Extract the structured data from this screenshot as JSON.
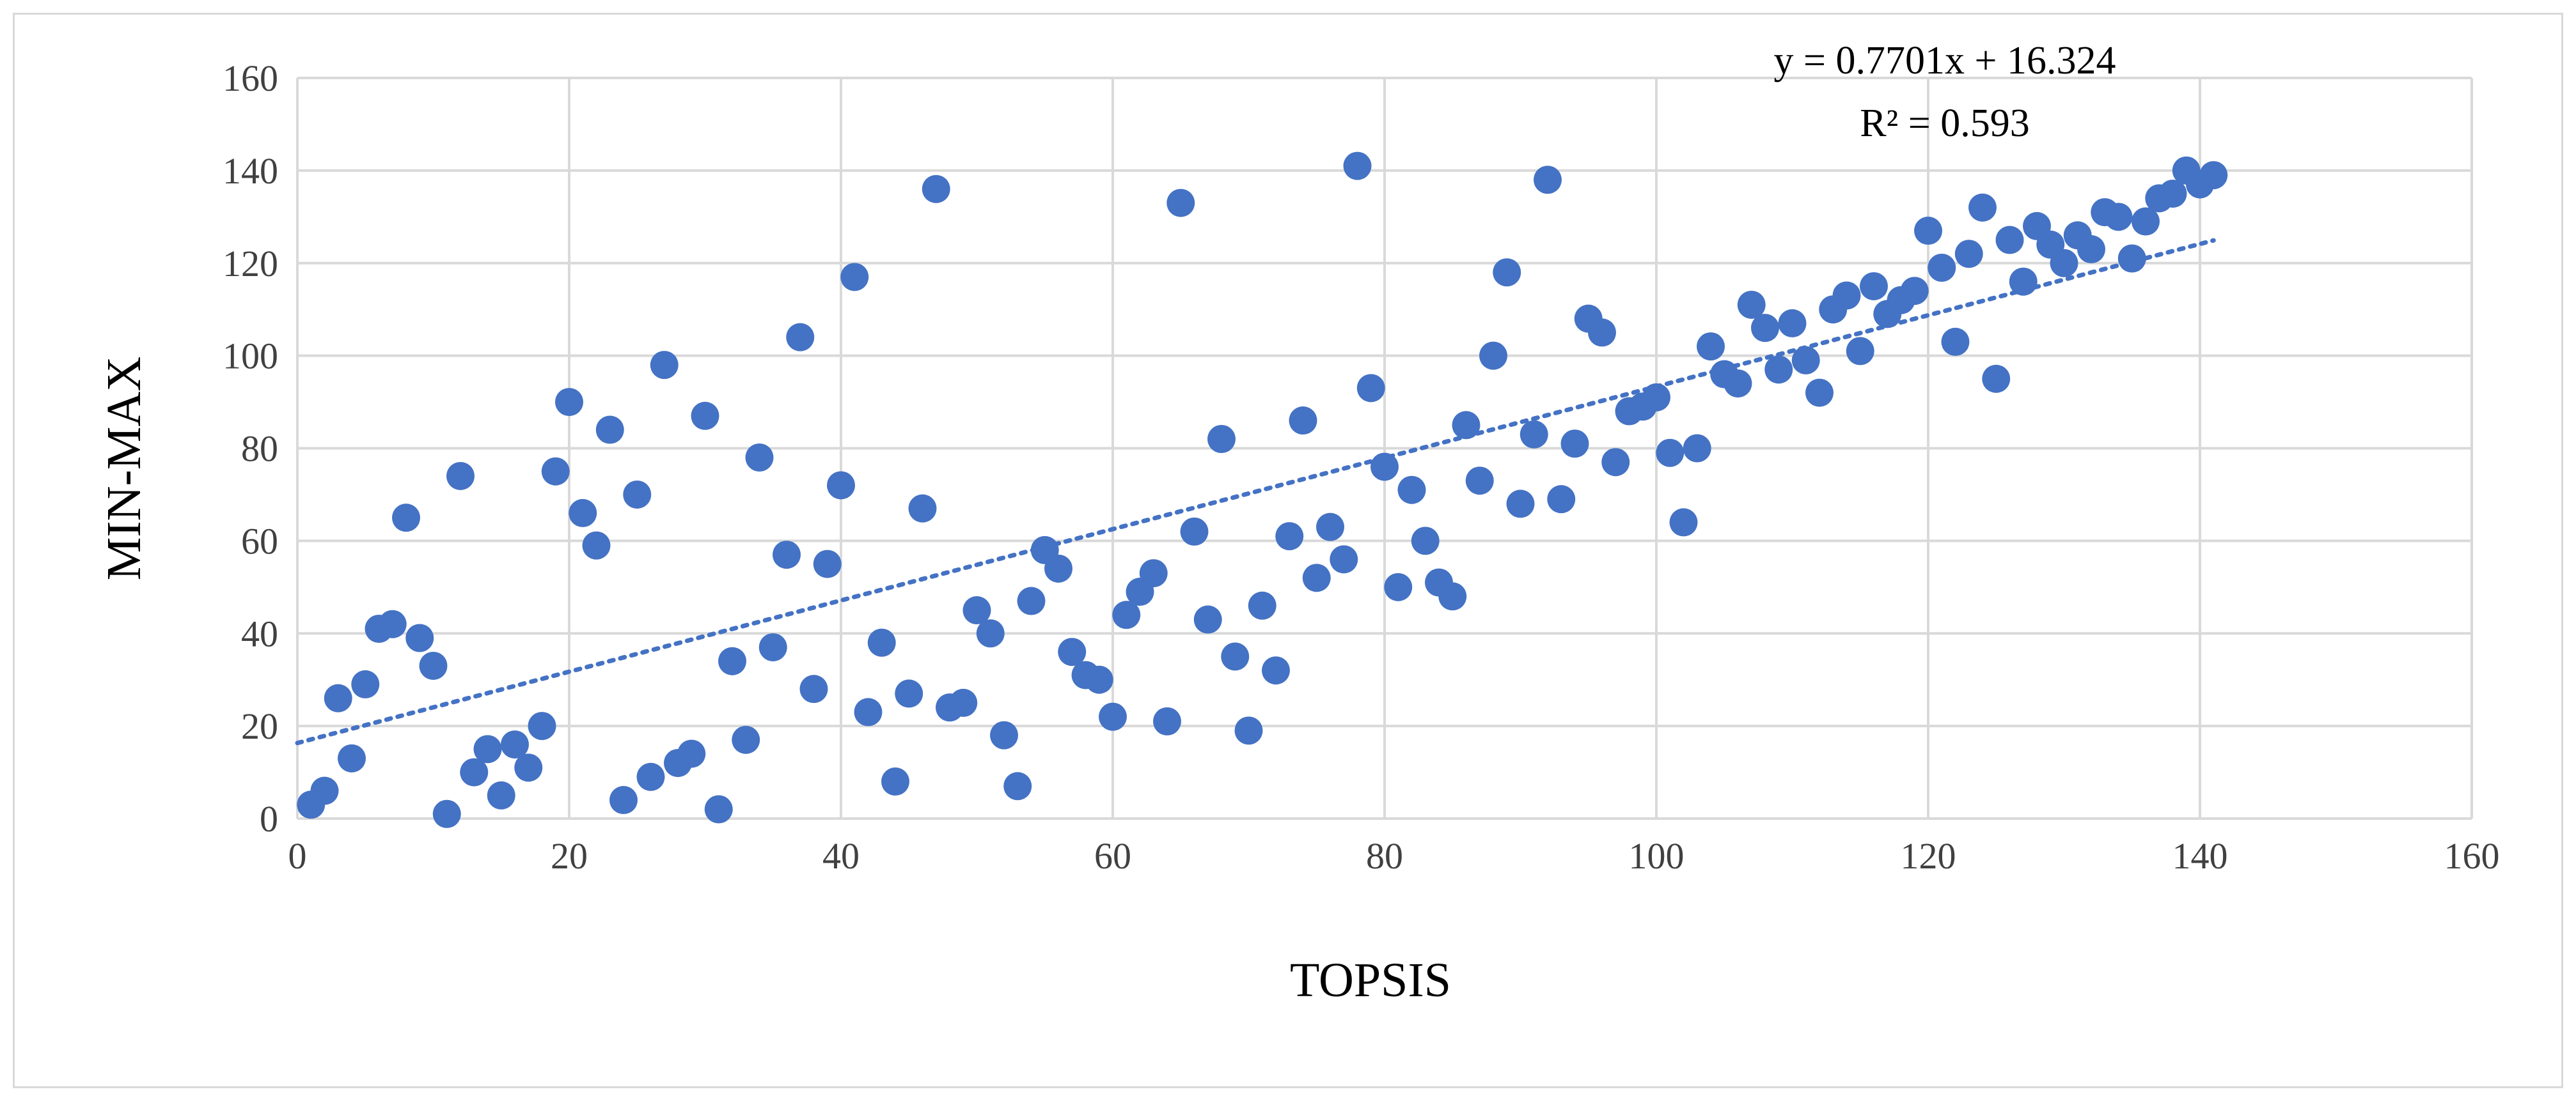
{
  "chart_data": {
    "type": "scatter",
    "title": "",
    "xlabel": "TOPSIS",
    "ylabel": "MIN-MAX",
    "xlim": [
      0,
      160
    ],
    "ylim": [
      0,
      160
    ],
    "xticks": [
      0,
      20,
      40,
      60,
      80,
      100,
      120,
      140,
      160
    ],
    "yticks": [
      0,
      20,
      40,
      60,
      80,
      100,
      120,
      140,
      160
    ],
    "grid": true,
    "legend": "none",
    "point_color": "#4472c4",
    "trendline": {
      "type": "linear",
      "style": "dotted",
      "slope": 0.7701,
      "intercept": 16.324,
      "x_range": [
        0,
        141
      ],
      "equation_label": "y = 0.7701x + 16.324",
      "r2_label": "R² = 0.593"
    },
    "points": [
      [
        1,
        3
      ],
      [
        2,
        6
      ],
      [
        3,
        26
      ],
      [
        4,
        13
      ],
      [
        5,
        29
      ],
      [
        6,
        41
      ],
      [
        7,
        42
      ],
      [
        8,
        65
      ],
      [
        9,
        39
      ],
      [
        10,
        33
      ],
      [
        11,
        1
      ],
      [
        12,
        74
      ],
      [
        13,
        10
      ],
      [
        14,
        15
      ],
      [
        15,
        5
      ],
      [
        16,
        16
      ],
      [
        17,
        11
      ],
      [
        18,
        20
      ],
      [
        19,
        75
      ],
      [
        20,
        90
      ],
      [
        21,
        66
      ],
      [
        22,
        59
      ],
      [
        23,
        84
      ],
      [
        24,
        4
      ],
      [
        25,
        70
      ],
      [
        26,
        9
      ],
      [
        27,
        98
      ],
      [
        28,
        12
      ],
      [
        29,
        14
      ],
      [
        30,
        87
      ],
      [
        31,
        2
      ],
      [
        32,
        34
      ],
      [
        33,
        17
      ],
      [
        34,
        78
      ],
      [
        35,
        37
      ],
      [
        36,
        57
      ],
      [
        37,
        104
      ],
      [
        38,
        28
      ],
      [
        39,
        55
      ],
      [
        40,
        72
      ],
      [
        41,
        117
      ],
      [
        42,
        23
      ],
      [
        43,
        38
      ],
      [
        44,
        8
      ],
      [
        45,
        27
      ],
      [
        46,
        67
      ],
      [
        47,
        136
      ],
      [
        48,
        24
      ],
      [
        49,
        25
      ],
      [
        50,
        45
      ],
      [
        51,
        40
      ],
      [
        52,
        18
      ],
      [
        53,
        7
      ],
      [
        54,
        47
      ],
      [
        55,
        58
      ],
      [
        56,
        54
      ],
      [
        57,
        36
      ],
      [
        58,
        31
      ],
      [
        59,
        30
      ],
      [
        60,
        22
      ],
      [
        61,
        44
      ],
      [
        62,
        49
      ],
      [
        63,
        53
      ],
      [
        64,
        21
      ],
      [
        65,
        133
      ],
      [
        66,
        62
      ],
      [
        67,
        43
      ],
      [
        68,
        82
      ],
      [
        69,
        35
      ],
      [
        70,
        19
      ],
      [
        71,
        46
      ],
      [
        72,
        32
      ],
      [
        73,
        61
      ],
      [
        74,
        86
      ],
      [
        75,
        52
      ],
      [
        76,
        63
      ],
      [
        77,
        56
      ],
      [
        78,
        141
      ],
      [
        79,
        93
      ],
      [
        80,
        76
      ],
      [
        81,
        50
      ],
      [
        82,
        71
      ],
      [
        83,
        60
      ],
      [
        84,
        51
      ],
      [
        85,
        48
      ],
      [
        86,
        85
      ],
      [
        87,
        73
      ],
      [
        88,
        100
      ],
      [
        89,
        118
      ],
      [
        90,
        68
      ],
      [
        91,
        83
      ],
      [
        92,
        138
      ],
      [
        93,
        69
      ],
      [
        94,
        81
      ],
      [
        95,
        108
      ],
      [
        96,
        105
      ],
      [
        97,
        77
      ],
      [
        98,
        88
      ],
      [
        99,
        89
      ],
      [
        100,
        91
      ],
      [
        101,
        79
      ],
      [
        102,
        64
      ],
      [
        103,
        80
      ],
      [
        104,
        102
      ],
      [
        105,
        96
      ],
      [
        106,
        94
      ],
      [
        107,
        111
      ],
      [
        108,
        106
      ],
      [
        109,
        97
      ],
      [
        110,
        107
      ],
      [
        111,
        99
      ],
      [
        112,
        92
      ],
      [
        113,
        110
      ],
      [
        114,
        113
      ],
      [
        115,
        101
      ],
      [
        116,
        115
      ],
      [
        117,
        109
      ],
      [
        118,
        112
      ],
      [
        119,
        114
      ],
      [
        120,
        127
      ],
      [
        121,
        119
      ],
      [
        122,
        103
      ],
      [
        123,
        122
      ],
      [
        124,
        132
      ],
      [
        125,
        95
      ],
      [
        126,
        125
      ],
      [
        127,
        116
      ],
      [
        128,
        128
      ],
      [
        129,
        124
      ],
      [
        130,
        120
      ],
      [
        131,
        126
      ],
      [
        132,
        123
      ],
      [
        133,
        131
      ],
      [
        134,
        130
      ],
      [
        135,
        121
      ],
      [
        136,
        129
      ],
      [
        137,
        134
      ],
      [
        138,
        135
      ],
      [
        139,
        140
      ],
      [
        140,
        137
      ],
      [
        141,
        139
      ]
    ]
  }
}
